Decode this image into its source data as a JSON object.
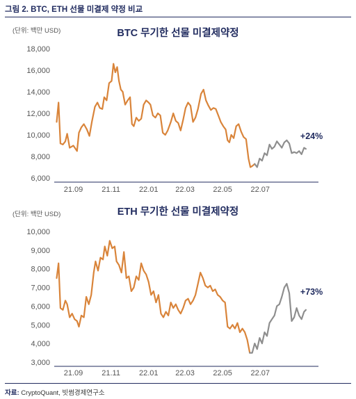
{
  "figure": {
    "title": "그림 2.  BTC, ETH 선물 미결제 약정 비교",
    "source_label": "자료:",
    "source_text": " CryptoQuant,  빗썸경제연구소"
  },
  "colors": {
    "orange": "#d9843a",
    "gray": "#8e8e8e",
    "axis": "#1f2a5e",
    "text": "#2a2f5a"
  },
  "chart_data": [
    {
      "type": "line",
      "title": "BTC 무기한 선물 미결제약정",
      "ylabel": "(단위: 백만 USD)",
      "ylim": [
        6000,
        18000
      ],
      "y_ticks": [
        "6,000",
        "8,000",
        "10,000",
        "12,000",
        "14,000",
        "16,000",
        "18,000"
      ],
      "y_tick_values": [
        6000,
        8000,
        10000,
        12000,
        14000,
        16000,
        18000
      ],
      "x_ticks": [
        "21.09",
        "21.11",
        "22.01",
        "22.03",
        "22.05",
        "22.07"
      ],
      "annotation": "+24%",
      "xlim": [
        "2021-08-01",
        "2022-09-30"
      ],
      "series": [
        {
          "color": "orange",
          "points": [
            [
              "2021-08-05",
              11200
            ],
            [
              "2021-08-08",
              13000
            ],
            [
              "2021-08-11",
              9200
            ],
            [
              "2021-08-15",
              9100
            ],
            [
              "2021-08-19",
              9400
            ],
            [
              "2021-08-22",
              10100
            ],
            [
              "2021-08-26",
              8800
            ],
            [
              "2021-09-01",
              9000
            ],
            [
              "2021-09-07",
              8500
            ],
            [
              "2021-09-10",
              10200
            ],
            [
              "2021-09-14",
              10700
            ],
            [
              "2021-09-18",
              11000
            ],
            [
              "2021-09-23",
              10500
            ],
            [
              "2021-09-27",
              9900
            ],
            [
              "2021-10-01",
              11200
            ],
            [
              "2021-10-06",
              12600
            ],
            [
              "2021-10-10",
              13000
            ],
            [
              "2021-10-14",
              12500
            ],
            [
              "2021-10-18",
              12400
            ],
            [
              "2021-10-21",
              13500
            ],
            [
              "2021-10-25",
              13200
            ],
            [
              "2021-10-29",
              14800
            ],
            [
              "2021-11-02",
              15000
            ],
            [
              "2021-11-05",
              16600
            ],
            [
              "2021-11-08",
              15800
            ],
            [
              "2021-11-11",
              16300
            ],
            [
              "2021-11-14",
              15000
            ],
            [
              "2021-11-17",
              14200
            ],
            [
              "2021-11-20",
              14000
            ],
            [
              "2021-11-24",
              12800
            ],
            [
              "2021-11-28",
              13200
            ],
            [
              "2021-12-02",
              13500
            ],
            [
              "2021-12-05",
              11000
            ],
            [
              "2021-12-08",
              10800
            ],
            [
              "2021-12-12",
              11600
            ],
            [
              "2021-12-16",
              11300
            ],
            [
              "2021-12-20",
              11500
            ],
            [
              "2021-12-24",
              12800
            ],
            [
              "2021-12-28",
              13200
            ],
            [
              "2022-01-01",
              13000
            ],
            [
              "2022-01-04",
              12800
            ],
            [
              "2022-01-08",
              11800
            ],
            [
              "2022-01-12",
              11600
            ],
            [
              "2022-01-16",
              12000
            ],
            [
              "2022-01-20",
              11800
            ],
            [
              "2022-01-24",
              10200
            ],
            [
              "2022-01-28",
              10000
            ],
            [
              "2022-02-01",
              10400
            ],
            [
              "2022-02-06",
              11200
            ],
            [
              "2022-02-10",
              12000
            ],
            [
              "2022-02-14",
              11300
            ],
            [
              "2022-02-18",
              11100
            ],
            [
              "2022-02-22",
              10400
            ],
            [
              "2022-02-26",
              11400
            ],
            [
              "2022-03-02",
              12500
            ],
            [
              "2022-03-06",
              13000
            ],
            [
              "2022-03-10",
              12700
            ],
            [
              "2022-03-14",
              11200
            ],
            [
              "2022-03-18",
              11600
            ],
            [
              "2022-03-22",
              12400
            ],
            [
              "2022-03-27",
              13800
            ],
            [
              "2022-03-31",
              14200
            ],
            [
              "2022-04-04",
              13200
            ],
            [
              "2022-04-08",
              12700
            ],
            [
              "2022-04-12",
              12300
            ],
            [
              "2022-04-16",
              12500
            ],
            [
              "2022-04-20",
              12400
            ],
            [
              "2022-04-24",
              11800
            ],
            [
              "2022-04-28",
              11200
            ],
            [
              "2022-05-02",
              10800
            ],
            [
              "2022-05-06",
              10500
            ],
            [
              "2022-05-09",
              9500
            ],
            [
              "2022-05-12",
              9300
            ],
            [
              "2022-05-15",
              10000
            ],
            [
              "2022-05-19",
              9700
            ],
            [
              "2022-05-23",
              10800
            ],
            [
              "2022-05-27",
              11000
            ],
            [
              "2022-05-31",
              10300
            ],
            [
              "2022-06-04",
              9800
            ],
            [
              "2022-06-08",
              9600
            ],
            [
              "2022-06-12",
              7800
            ],
            [
              "2022-06-15",
              7000
            ],
            [
              "2022-06-18",
              7100
            ],
            [
              "2022-06-22",
              7300
            ]
          ]
        },
        {
          "color": "gray",
          "points": [
            [
              "2022-06-22",
              7300
            ],
            [
              "2022-06-26",
              7000
            ],
            [
              "2022-06-30",
              7800
            ],
            [
              "2022-07-04",
              7600
            ],
            [
              "2022-07-08",
              8300
            ],
            [
              "2022-07-12",
              8100
            ],
            [
              "2022-07-16",
              9100
            ],
            [
              "2022-07-20",
              8700
            ],
            [
              "2022-07-24",
              8900
            ],
            [
              "2022-07-28",
              9400
            ],
            [
              "2022-08-01",
              9100
            ],
            [
              "2022-08-05",
              8800
            ],
            [
              "2022-08-09",
              9300
            ],
            [
              "2022-08-13",
              9500
            ],
            [
              "2022-08-17",
              9200
            ],
            [
              "2022-08-21",
              8300
            ],
            [
              "2022-08-25",
              8400
            ],
            [
              "2022-08-29",
              8300
            ],
            [
              "2022-09-02",
              8500
            ],
            [
              "2022-09-06",
              8200
            ],
            [
              "2022-09-10",
              8800
            ],
            [
              "2022-09-13",
              8700
            ]
          ]
        }
      ]
    },
    {
      "type": "line",
      "title": "ETH 무기한 선물 미결제약정",
      "ylabel": "(단위: 백만 USD)",
      "ylim": [
        3000,
        10000
      ],
      "y_ticks": [
        "3,000",
        "4,000",
        "5,000",
        "6,000",
        "7,000",
        "8,000",
        "9,000",
        "10,000"
      ],
      "y_tick_values": [
        3000,
        4000,
        5000,
        6000,
        7000,
        8000,
        9000,
        10000
      ],
      "x_ticks": [
        "21.09",
        "21.11",
        "22.01",
        "22.03",
        "22.05",
        "22.07"
      ],
      "annotation": "+73%",
      "xlim": [
        "2021-08-01",
        "2022-09-30"
      ],
      "series": [
        {
          "color": "orange",
          "points": [
            [
              "2021-08-05",
              7500
            ],
            [
              "2021-08-08",
              8300
            ],
            [
              "2021-08-11",
              5900
            ],
            [
              "2021-08-15",
              5800
            ],
            [
              "2021-08-19",
              6300
            ],
            [
              "2021-08-22",
              6100
            ],
            [
              "2021-08-26",
              5400
            ],
            [
              "2021-08-30",
              5600
            ],
            [
              "2021-09-03",
              5300
            ],
            [
              "2021-09-07",
              5200
            ],
            [
              "2021-09-10",
              4900
            ],
            [
              "2021-09-14",
              5500
            ],
            [
              "2021-09-18",
              5400
            ],
            [
              "2021-09-22",
              6500
            ],
            [
              "2021-09-26",
              6100
            ],
            [
              "2021-09-30",
              6600
            ],
            [
              "2021-10-04",
              7800
            ],
            [
              "2021-10-07",
              8400
            ],
            [
              "2021-10-11",
              7900
            ],
            [
              "2021-10-15",
              8600
            ],
            [
              "2021-10-19",
              8500
            ],
            [
              "2021-10-22",
              9200
            ],
            [
              "2021-10-26",
              8700
            ],
            [
              "2021-10-30",
              9500
            ],
            [
              "2021-11-03",
              9100
            ],
            [
              "2021-11-07",
              9200
            ],
            [
              "2021-11-10",
              8400
            ],
            [
              "2021-11-14",
              8200
            ],
            [
              "2021-11-18",
              7800
            ],
            [
              "2021-11-22",
              8900
            ],
            [
              "2021-11-26",
              7500
            ],
            [
              "2021-11-30",
              7600
            ],
            [
              "2021-12-04",
              6800
            ],
            [
              "2021-12-08",
              7000
            ],
            [
              "2021-12-12",
              7600
            ],
            [
              "2021-12-16",
              7400
            ],
            [
              "2021-12-20",
              8300
            ],
            [
              "2021-12-24",
              7900
            ],
            [
              "2021-12-28",
              7700
            ],
            [
              "2022-01-01",
              7300
            ],
            [
              "2022-01-05",
              6600
            ],
            [
              "2022-01-09",
              6800
            ],
            [
              "2022-01-13",
              6200
            ],
            [
              "2022-01-17",
              6600
            ],
            [
              "2022-01-21",
              5600
            ],
            [
              "2022-01-25",
              5400
            ],
            [
              "2022-01-29",
              5700
            ],
            [
              "2022-02-02",
              5500
            ],
            [
              "2022-02-06",
              6200
            ],
            [
              "2022-02-10",
              5900
            ],
            [
              "2022-02-14",
              6100
            ],
            [
              "2022-02-18",
              5800
            ],
            [
              "2022-02-22",
              5600
            ],
            [
              "2022-02-26",
              5900
            ],
            [
              "2022-03-02",
              6300
            ],
            [
              "2022-03-06",
              6400
            ],
            [
              "2022-03-10",
              6100
            ],
            [
              "2022-03-14",
              6300
            ],
            [
              "2022-03-18",
              6600
            ],
            [
              "2022-03-22",
              7200
            ],
            [
              "2022-03-26",
              7800
            ],
            [
              "2022-03-30",
              7500
            ],
            [
              "2022-04-03",
              7100
            ],
            [
              "2022-04-07",
              7000
            ],
            [
              "2022-04-11",
              7100
            ],
            [
              "2022-04-15",
              6800
            ],
            [
              "2022-04-19",
              6900
            ],
            [
              "2022-04-23",
              6600
            ],
            [
              "2022-04-27",
              6500
            ],
            [
              "2022-05-01",
              6300
            ],
            [
              "2022-05-05",
              6200
            ],
            [
              "2022-05-09",
              4900
            ],
            [
              "2022-05-13",
              4800
            ],
            [
              "2022-05-17",
              5000
            ],
            [
              "2022-05-21",
              4800
            ],
            [
              "2022-05-25",
              5100
            ],
            [
              "2022-05-29",
              4600
            ],
            [
              "2022-06-02",
              4800
            ],
            [
              "2022-06-06",
              4600
            ],
            [
              "2022-06-10",
              4200
            ],
            [
              "2022-06-14",
              3500
            ]
          ]
        },
        {
          "color": "gray",
          "points": [
            [
              "2022-06-14",
              3500
            ],
            [
              "2022-06-18",
              3500
            ],
            [
              "2022-06-22",
              4000
            ],
            [
              "2022-06-26",
              3700
            ],
            [
              "2022-06-30",
              4300
            ],
            [
              "2022-07-04",
              4000
            ],
            [
              "2022-07-08",
              4600
            ],
            [
              "2022-07-12",
              4400
            ],
            [
              "2022-07-16",
              5100
            ],
            [
              "2022-07-20",
              5300
            ],
            [
              "2022-07-24",
              5500
            ],
            [
              "2022-07-28",
              6000
            ],
            [
              "2022-08-01",
              6100
            ],
            [
              "2022-08-05",
              6500
            ],
            [
              "2022-08-09",
              7000
            ],
            [
              "2022-08-13",
              7200
            ],
            [
              "2022-08-17",
              6700
            ],
            [
              "2022-08-21",
              5200
            ],
            [
              "2022-08-25",
              5400
            ],
            [
              "2022-08-29",
              5900
            ],
            [
              "2022-09-02",
              5500
            ],
            [
              "2022-09-06",
              5300
            ],
            [
              "2022-09-10",
              5700
            ],
            [
              "2022-09-13",
              5800
            ]
          ]
        }
      ]
    }
  ]
}
